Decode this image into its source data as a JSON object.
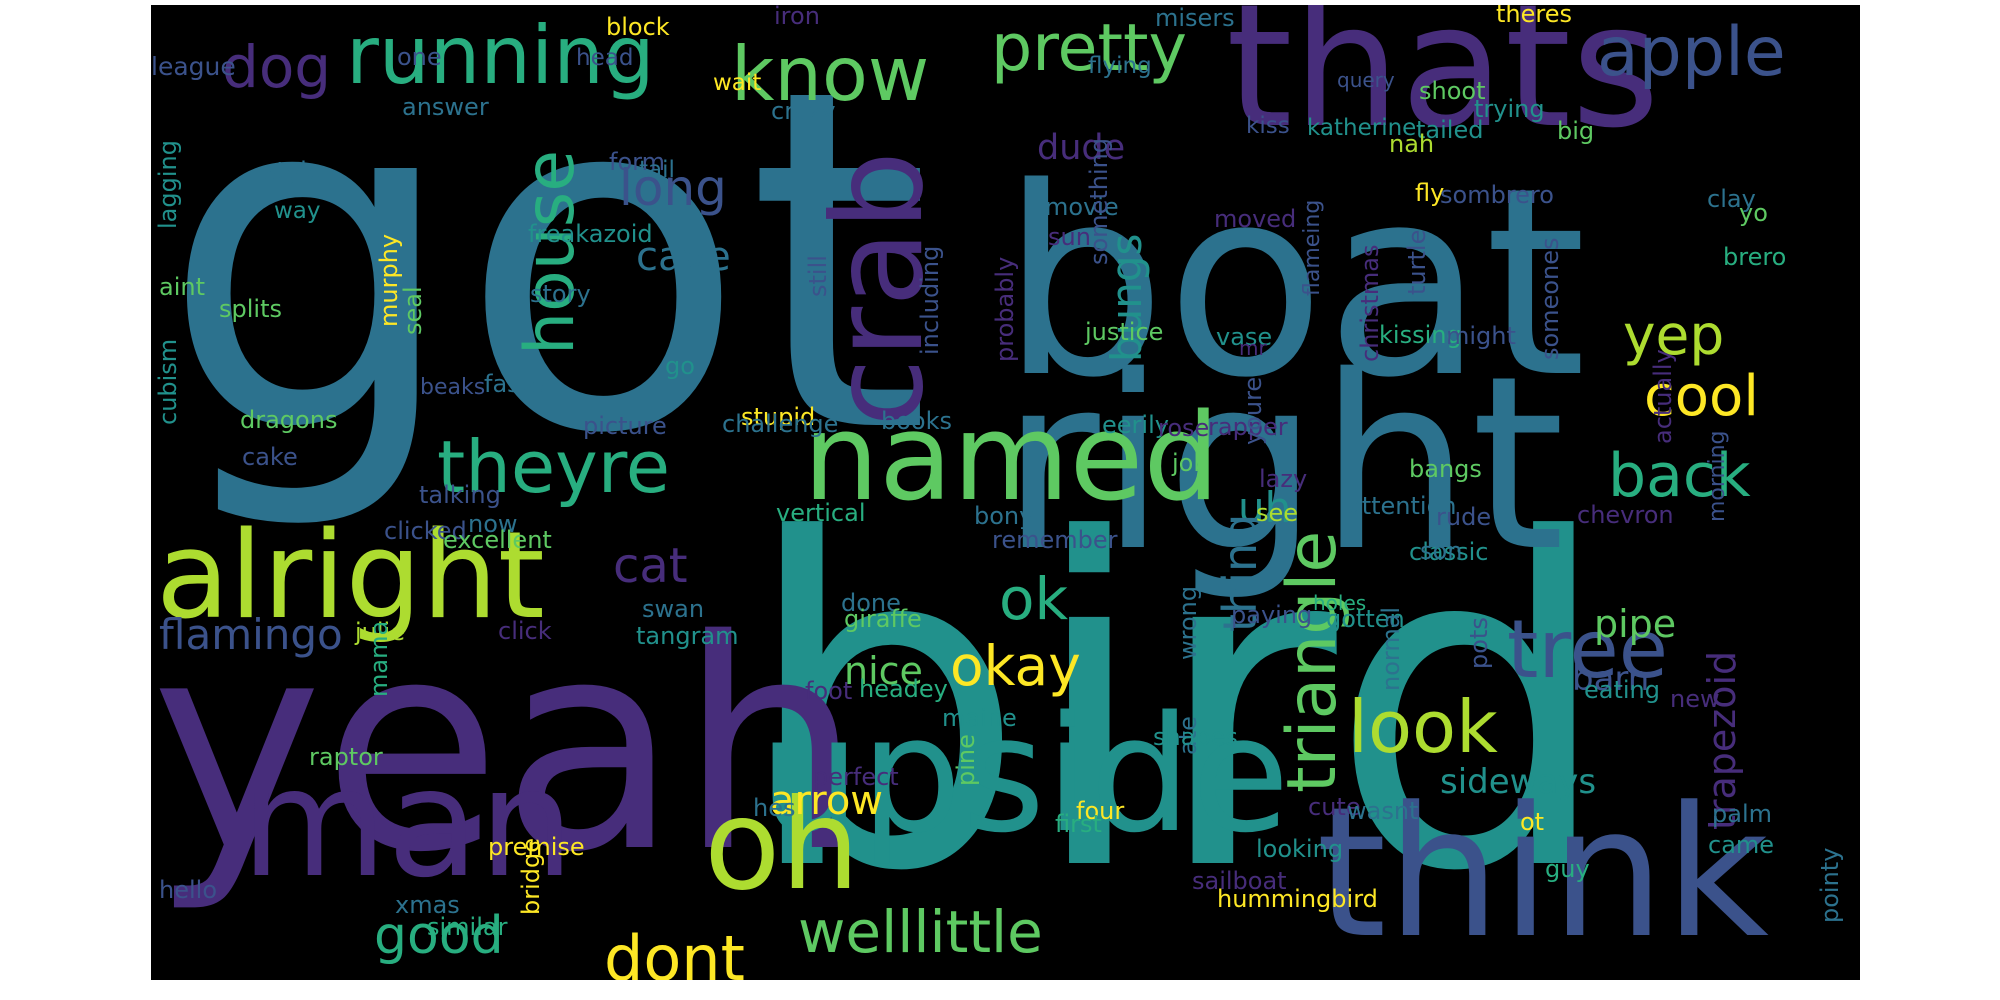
{
  "background": "#000000",
  "palette": {
    "purple": "#472d7b",
    "indigo": "#3b528b",
    "blue": "#2c728e",
    "teal": "#21918c",
    "green": "#28ae80",
    "lime": "#5ec962",
    "yellowgreen": "#addc30",
    "yellow": "#fde725"
  },
  "words": [
    {
      "text": "got",
      "color": "#2c728e"
    },
    {
      "text": "bird",
      "color": "#21918c"
    },
    {
      "text": "boat",
      "color": "#2c728e"
    },
    {
      "text": "yeah",
      "color": "#472d7b"
    },
    {
      "text": "right",
      "color": "#2c728e"
    },
    {
      "text": "thats",
      "color": "#472d7b"
    },
    {
      "text": "think",
      "color": "#3b528b"
    },
    {
      "text": "upside",
      "color": "#21918c"
    },
    {
      "text": "man",
      "color": "#472d7b"
    },
    {
      "text": "named",
      "color": "#5ec962"
    },
    {
      "text": "alright",
      "color": "#addc30"
    },
    {
      "text": "oh",
      "color": "#addc30"
    },
    {
      "text": "crab",
      "color": "#472d7b"
    },
    {
      "text": "running",
      "color": "#28ae80"
    },
    {
      "text": "know",
      "color": "#5ec962"
    },
    {
      "text": "pretty",
      "color": "#5ec962"
    },
    {
      "text": "apple",
      "color": "#3b528b"
    },
    {
      "text": "dog",
      "color": "#472d7b"
    },
    {
      "text": "house",
      "color": "#28ae80"
    },
    {
      "text": "theyre",
      "color": "#28ae80"
    },
    {
      "text": "triangle",
      "color": "#5ec962"
    },
    {
      "text": "tree",
      "color": "#3b528b"
    },
    {
      "text": "look",
      "color": "#addc30"
    },
    {
      "text": "dont",
      "color": "#fde725"
    },
    {
      "text": "welllittle",
      "color": "#5ec962"
    },
    {
      "text": "back",
      "color": "#28ae80"
    },
    {
      "text": "yep",
      "color": "#addc30"
    },
    {
      "text": "cool",
      "color": "#fde725"
    },
    {
      "text": "okay",
      "color": "#fde725"
    },
    {
      "text": "ok",
      "color": "#28ae80"
    },
    {
      "text": "cat",
      "color": "#472d7b"
    },
    {
      "text": "good",
      "color": "#28ae80"
    },
    {
      "text": "flamingo",
      "color": "#3b528b"
    },
    {
      "text": "uh",
      "color": "#21918c"
    },
    {
      "text": "thing",
      "color": "#2c728e"
    },
    {
      "text": "bungs",
      "color": "#21918c"
    },
    {
      "text": "long",
      "color": "#3b528b"
    },
    {
      "text": "cave",
      "color": "#2c728e"
    },
    {
      "text": "trapezoid",
      "color": "#472d7b"
    },
    {
      "text": "sideways",
      "color": "#21918c"
    },
    {
      "text": "arrow",
      "color": "#fde725"
    },
    {
      "text": "nice",
      "color": "#5ec962"
    },
    {
      "text": "pipe",
      "color": "#5ec962"
    },
    {
      "text": "barn",
      "color": "#3b528b"
    },
    {
      "text": "dude",
      "color": "#472d7b"
    },
    {
      "text": "iron",
      "color": "#472d7b"
    },
    {
      "text": "block",
      "color": "#fde725"
    },
    {
      "text": "misers",
      "color": "#2c728e"
    },
    {
      "text": "theres",
      "color": "#fde725"
    },
    {
      "text": "league",
      "color": "#3b528b"
    },
    {
      "text": "one",
      "color": "#3b528b"
    },
    {
      "text": "head",
      "color": "#3b528b"
    },
    {
      "text": "wait",
      "color": "#fde725"
    },
    {
      "text": "flying",
      "color": "#2c728e"
    },
    {
      "text": "query",
      "color": "#3b528b"
    },
    {
      "text": "shoot",
      "color": "#5ec962"
    },
    {
      "text": "trying",
      "color": "#21918c"
    },
    {
      "text": "form",
      "color": "#3b528b"
    },
    {
      "text": "answer",
      "color": "#2c728e"
    },
    {
      "text": "crazy",
      "color": "#2c728e"
    },
    {
      "text": "kiss",
      "color": "#3b528b"
    },
    {
      "text": "katherine",
      "color": "#21918c"
    },
    {
      "text": "tailed",
      "color": "#21918c"
    },
    {
      "text": "big",
      "color": "#5ec962"
    },
    {
      "text": "nah",
      "color": "#addc30"
    },
    {
      "text": "style",
      "color": "#2c728e"
    },
    {
      "text": "lagging",
      "color": "#21918c"
    },
    {
      "text": "tail",
      "color": "#2c728e"
    },
    {
      "text": "way",
      "color": "#21918c"
    },
    {
      "text": "murphy",
      "color": "#fde725"
    },
    {
      "text": "seal",
      "color": "#5ec962"
    },
    {
      "text": "freakazoid",
      "color": "#21918c"
    },
    {
      "text": "story",
      "color": "#2c728e"
    },
    {
      "text": "movie",
      "color": "#2c728e"
    },
    {
      "text": "sun",
      "color": "#472d7b"
    },
    {
      "text": "moved",
      "color": "#472d7b"
    },
    {
      "text": "fly",
      "color": "#fde725"
    },
    {
      "text": "sombrero",
      "color": "#3b528b"
    },
    {
      "text": "clay",
      "color": "#2c728e"
    },
    {
      "text": "yo",
      "color": "#5ec962"
    },
    {
      "text": "brero",
      "color": "#28ae80"
    },
    {
      "text": "aint",
      "color": "#5ec962"
    },
    {
      "text": "splits",
      "color": "#5ec962"
    },
    {
      "text": "cubism",
      "color": "#21918c"
    },
    {
      "text": "still",
      "color": "#3b528b"
    },
    {
      "text": "including",
      "color": "#3b528b"
    },
    {
      "text": "probably",
      "color": "#472d7b"
    },
    {
      "text": "something",
      "color": "#3b528b"
    },
    {
      "text": "flameing",
      "color": "#3b528b"
    },
    {
      "text": "christmas",
      "color": "#472d7b"
    },
    {
      "text": "turtle",
      "color": "#3b528b"
    },
    {
      "text": "justice",
      "color": "#5ec962"
    },
    {
      "text": "vase",
      "color": "#21918c"
    },
    {
      "text": "mr",
      "color": "#472d7b"
    },
    {
      "text": "kissing",
      "color": "#28ae80"
    },
    {
      "text": "might",
      "color": "#3b528b"
    },
    {
      "text": "someones",
      "color": "#3b528b"
    },
    {
      "text": "faster",
      "color": "#2c728e"
    },
    {
      "text": "go",
      "color": "#21918c"
    },
    {
      "text": "beaks",
      "color": "#3b528b"
    },
    {
      "text": "picture",
      "color": "#3b528b"
    },
    {
      "text": "stupid",
      "color": "#fde725"
    },
    {
      "text": "challenge",
      "color": "#2c728e"
    },
    {
      "text": "books",
      "color": "#2c728e"
    },
    {
      "text": "eerily",
      "color": "#21918c"
    },
    {
      "text": "rose",
      "color": "#472d7b"
    },
    {
      "text": "rapper",
      "color": "#472d7b"
    },
    {
      "text": "youre",
      "color": "#3b528b"
    },
    {
      "text": "actually",
      "color": "#472d7b"
    },
    {
      "text": "morning",
      "color": "#3b528b"
    },
    {
      "text": "dragons",
      "color": "#5ec962"
    },
    {
      "text": "cake",
      "color": "#3b528b"
    },
    {
      "text": "job",
      "color": "#5ec962"
    },
    {
      "text": "lazy",
      "color": "#472d7b"
    },
    {
      "text": "bangs",
      "color": "#5ec962"
    },
    {
      "text": "talking",
      "color": "#3b528b"
    },
    {
      "text": "now",
      "color": "#2c728e"
    },
    {
      "text": "clicked",
      "color": "#3b528b"
    },
    {
      "text": "excellent",
      "color": "#5ec962"
    },
    {
      "text": "vertical",
      "color": "#28ae80"
    },
    {
      "text": "bony",
      "color": "#2c728e"
    },
    {
      "text": "remember",
      "color": "#3b528b"
    },
    {
      "text": "see",
      "color": "#addc30"
    },
    {
      "text": "attention",
      "color": "#2c728e"
    },
    {
      "text": "rude",
      "color": "#3b528b"
    },
    {
      "text": "classic",
      "color": "#21918c"
    },
    {
      "text": "chevron",
      "color": "#472d7b"
    },
    {
      "text": "son",
      "color": "#2c728e"
    },
    {
      "text": "wrong",
      "color": "#2c728e"
    },
    {
      "text": "holes",
      "color": "#28ae80"
    },
    {
      "text": "done",
      "color": "#2c728e"
    },
    {
      "text": "gotten",
      "color": "#21918c"
    },
    {
      "text": "swan",
      "color": "#2c728e"
    },
    {
      "text": "giraffe",
      "color": "#5ec962"
    },
    {
      "text": "paying",
      "color": "#3b528b"
    },
    {
      "text": "click",
      "color": "#472d7b"
    },
    {
      "text": "julie",
      "color": "#addc30"
    },
    {
      "text": "tangram",
      "color": "#21918c"
    },
    {
      "text": "ate",
      "color": "#2c728e"
    },
    {
      "text": "pots",
      "color": "#3b528b"
    },
    {
      "text": "foot",
      "color": "#472d7b"
    },
    {
      "text": "headey",
      "color": "#28ae80"
    },
    {
      "text": "normal",
      "color": "#2c728e"
    },
    {
      "text": "eating",
      "color": "#21918c"
    },
    {
      "text": "new",
      "color": "#472d7b"
    },
    {
      "text": "maine",
      "color": "#21918c"
    },
    {
      "text": "shapes",
      "color": "#21918c"
    },
    {
      "text": "mama",
      "color": "#28ae80"
    },
    {
      "text": "raptor",
      "color": "#5ec962"
    },
    {
      "text": "pine",
      "color": "#5ec962"
    },
    {
      "text": "perfect",
      "color": "#472d7b"
    },
    {
      "text": "hes",
      "color": "#2c728e"
    },
    {
      "text": "four",
      "color": "#fde725"
    },
    {
      "text": "cute",
      "color": "#472d7b"
    },
    {
      "text": "ot",
      "color": "#fde725"
    },
    {
      "text": "guy",
      "color": "#28ae80"
    },
    {
      "text": "wasnt",
      "color": "#2c728e"
    },
    {
      "text": "palm",
      "color": "#2c728e"
    },
    {
      "text": "came",
      "color": "#21918c"
    },
    {
      "text": "premise",
      "color": "#fde725"
    },
    {
      "text": "bridge",
      "color": "#fde725"
    },
    {
      "text": "first",
      "color": "#28ae80"
    },
    {
      "text": "looking",
      "color": "#21918c"
    },
    {
      "text": "sailboat",
      "color": "#472d7b"
    },
    {
      "text": "pointy",
      "color": "#2c728e"
    },
    {
      "text": "hello",
      "color": "#3b528b"
    },
    {
      "text": "xmas",
      "color": "#2c728e"
    },
    {
      "text": "hummingbird",
      "color": "#fde725"
    },
    {
      "text": "similar",
      "color": "#28ae80"
    }
  ]
}
